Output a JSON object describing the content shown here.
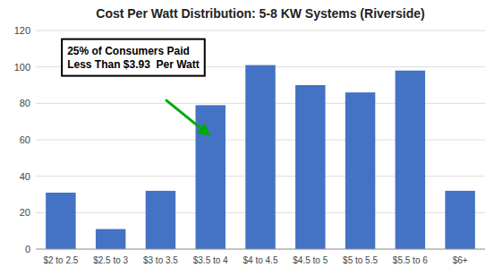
{
  "chart_data": {
    "type": "bar",
    "title": "Cost Per Watt Distribution: 5-8 KW Systems (Riverside)",
    "categories": [
      "$2 to 2.5",
      "$2.5 to 3",
      "$3 to 3.5",
      "$3.5 to 4",
      "$4 to 4.5",
      "$4.5 to 5",
      "$5 to 5.5",
      "$5.5 to 6",
      "$6+"
    ],
    "values": [
      31,
      11,
      32,
      79,
      101,
      90,
      86,
      98,
      32
    ],
    "color": "#4472C4",
    "ylim": [
      0,
      120
    ],
    "yticks": [
      0,
      20,
      40,
      60,
      80,
      100,
      120
    ],
    "grid": true,
    "annotation": "25% of Consumers Paid\nLess Than $3.93  Per Watt"
  }
}
